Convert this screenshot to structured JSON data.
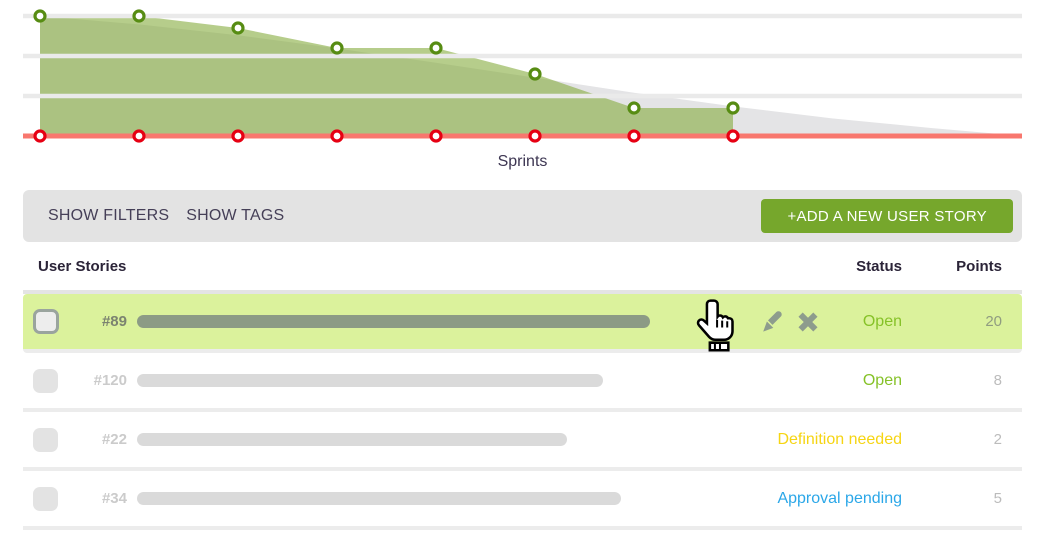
{
  "chart_data": {
    "type": "area",
    "title": "",
    "xlabel": "Sprints",
    "ylabel": "",
    "x_tick_labels_visible": false,
    "ylim": [
      0,
      30
    ],
    "gridline_values": [
      10,
      20,
      30
    ],
    "grid": true,
    "legend": false,
    "series": [
      {
        "name": "ideal-scope-burndown",
        "style": "area",
        "fill_color": "#e4e4e6",
        "x": [
          1,
          2,
          3,
          4,
          5,
          6,
          7,
          8,
          9,
          10,
          11
        ],
        "values": [
          30,
          27.9,
          25.2,
          21.9,
          18.3,
          14.6,
          10.8,
          7.4,
          4.4,
          2.0,
          0
        ]
      },
      {
        "name": "remaining-effort-actual",
        "style": "area",
        "fill_color": "#86ab3e",
        "fill_opacity": 0.6,
        "marker_stroke": "#578c13",
        "x": [
          1,
          2,
          3,
          4,
          5,
          6,
          7,
          8
        ],
        "values": [
          30,
          30,
          27,
          22,
          22,
          15.5,
          7,
          7
        ]
      },
      {
        "name": "completed-baseline",
        "style": "line",
        "line_color": "#f8776e",
        "marker_stroke": "#e60013",
        "x": [
          1,
          2,
          3,
          4,
          5,
          6,
          7,
          8
        ],
        "values": [
          0,
          0,
          0,
          0,
          0,
          0,
          0,
          0
        ]
      }
    ],
    "colors": {
      "gridline": "#eaeaea",
      "marker_fill": "#ffffff"
    }
  },
  "toolbar": {
    "show_filters_label": "SHOW FILTERS",
    "show_tags_label": "SHOW TAGS",
    "add_story_label": "+ADD A NEW USER STORY",
    "add_button_color": "#76a72c"
  },
  "table": {
    "headers": {
      "user_stories": "User Stories",
      "status": "Status",
      "points": "Points"
    },
    "status_colors": {
      "open": "#86c228",
      "definition_needed": "#f6d513",
      "approval_pending": "#2ba7e8"
    },
    "rows": [
      {
        "id": "#89",
        "status": "Open",
        "status_style": "color:#86c228",
        "points": "20",
        "bar_style": "width:513px",
        "highlighted": true
      },
      {
        "id": "#120",
        "status": "Open",
        "status_style": "color:#86c228",
        "points": "8",
        "bar_style": "width:466px",
        "highlighted": false
      },
      {
        "id": "#22",
        "status": "Definition needed",
        "status_style": "color:#f6d513",
        "points": "2",
        "bar_style": "width:430px",
        "highlighted": false
      },
      {
        "id": "#34",
        "status": "Approval pending",
        "status_style": "color:#2ba7e8",
        "points": "5",
        "bar_style": "width:484px",
        "highlighted": false
      }
    ]
  }
}
